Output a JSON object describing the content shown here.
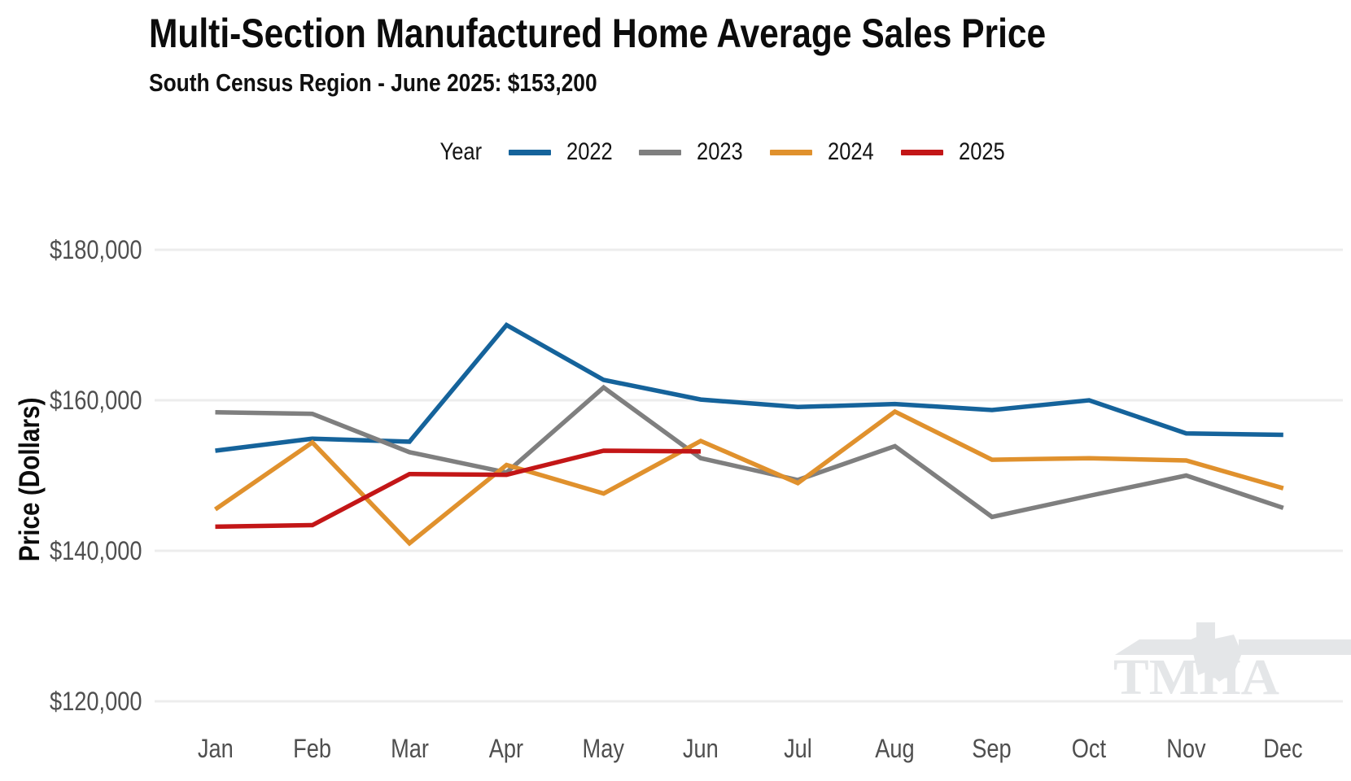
{
  "title": "Multi-Section Manufactured Home Average Sales Price",
  "subtitle": "South Census Region - June 2025: $153,200",
  "legend": {
    "label": "Year",
    "items": [
      {
        "label": "2022",
        "color": "#15639b"
      },
      {
        "label": "2023",
        "color": "#7f7f7f"
      },
      {
        "label": "2024",
        "color": "#e0912d"
      },
      {
        "label": "2025",
        "color": "#c31617"
      }
    ]
  },
  "y_axis": {
    "title": "Price (Dollars)",
    "ticks": [
      {
        "label": "$180,000",
        "value": 180000
      },
      {
        "label": "$160,000",
        "value": 160000
      },
      {
        "label": "$140,000",
        "value": 140000
      },
      {
        "label": "$120,000",
        "value": 120000
      }
    ]
  },
  "x_axis": {
    "labels": [
      "Jan",
      "Feb",
      "Mar",
      "Apr",
      "May",
      "Jun",
      "Jul",
      "Aug",
      "Sep",
      "Oct",
      "Nov",
      "Dec"
    ]
  },
  "watermark": "TMHA",
  "colors": {
    "background": "#ffffff",
    "gridline": "#ededed",
    "axis_text": "#4f4f4f",
    "title_text": "#0c0c0c",
    "watermark": "#e4e6e8",
    "series_2022": "#15639b",
    "series_2023": "#7f7f7f",
    "series_2024": "#e0912d",
    "series_2025": "#c31617"
  },
  "chart_data": {
    "type": "line",
    "title": "Multi-Section Manufactured Home Average Sales Price",
    "subtitle": "South Census Region - June 2025: $153,200",
    "xlabel": "",
    "ylabel": "Price (Dollars)",
    "categories": [
      "Jan",
      "Feb",
      "Mar",
      "Apr",
      "May",
      "Jun",
      "Jul",
      "Aug",
      "Sep",
      "Oct",
      "Nov",
      "Dec"
    ],
    "ylim": [
      120000,
      185000
    ],
    "ytick_values": [
      120000,
      140000,
      160000,
      180000
    ],
    "grid": "horizontal",
    "legend_position": "top",
    "unit": "USD",
    "highlight_note": "June 2025: $153,200",
    "series": [
      {
        "name": "2022",
        "color": "#15639b",
        "values": [
          153300,
          154900,
          154500,
          170000,
          162700,
          160100,
          159100,
          159500,
          158700,
          160000,
          155600,
          155400
        ]
      },
      {
        "name": "2023",
        "color": "#7f7f7f",
        "values": [
          158400,
          158200,
          153100,
          150400,
          161700,
          152300,
          149400,
          153900,
          144500,
          147300,
          150000,
          145700
        ]
      },
      {
        "name": "2024",
        "color": "#e0912d",
        "values": [
          145500,
          154400,
          141000,
          151400,
          147600,
          154600,
          149000,
          158500,
          152100,
          152300,
          152000,
          148300
        ]
      },
      {
        "name": "2025",
        "color": "#c31617",
        "values": [
          143200,
          143400,
          150200,
          150100,
          153300,
          153200
        ]
      }
    ]
  }
}
